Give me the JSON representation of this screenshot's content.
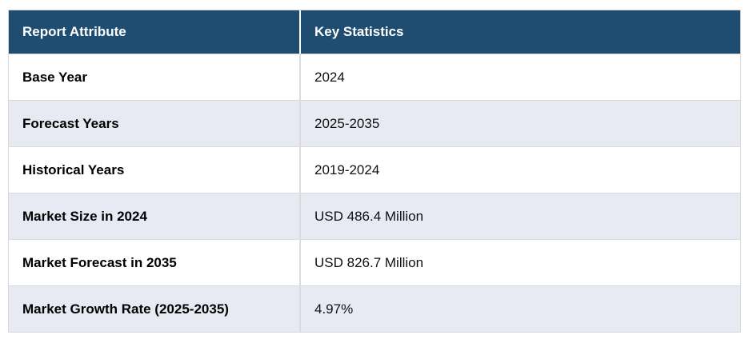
{
  "chart_data": {
    "type": "table",
    "columns": [
      "Report Attribute",
      "Key Statistics"
    ],
    "rows": [
      {
        "attribute": "Base Year",
        "value": "2024"
      },
      {
        "attribute": "Forecast Years",
        "value": "2025-2035"
      },
      {
        "attribute": "Historical Years",
        "value": "2019-2024"
      },
      {
        "attribute": "Market Size in 2024",
        "value": "USD 486.4 Million"
      },
      {
        "attribute": "Market Forecast in 2035",
        "value": "USD 826.7 Million"
      },
      {
        "attribute": "Market Growth Rate (2025-2035)",
        "value": "4.97%"
      }
    ]
  },
  "colors": {
    "header_bg": "#1F4D71",
    "header_text": "#FFFFFF",
    "row_bg": "#FFFFFF",
    "alt_row_bg": "#E7E9F3",
    "border": "#DCDCDC",
    "body_text": "#111111"
  }
}
